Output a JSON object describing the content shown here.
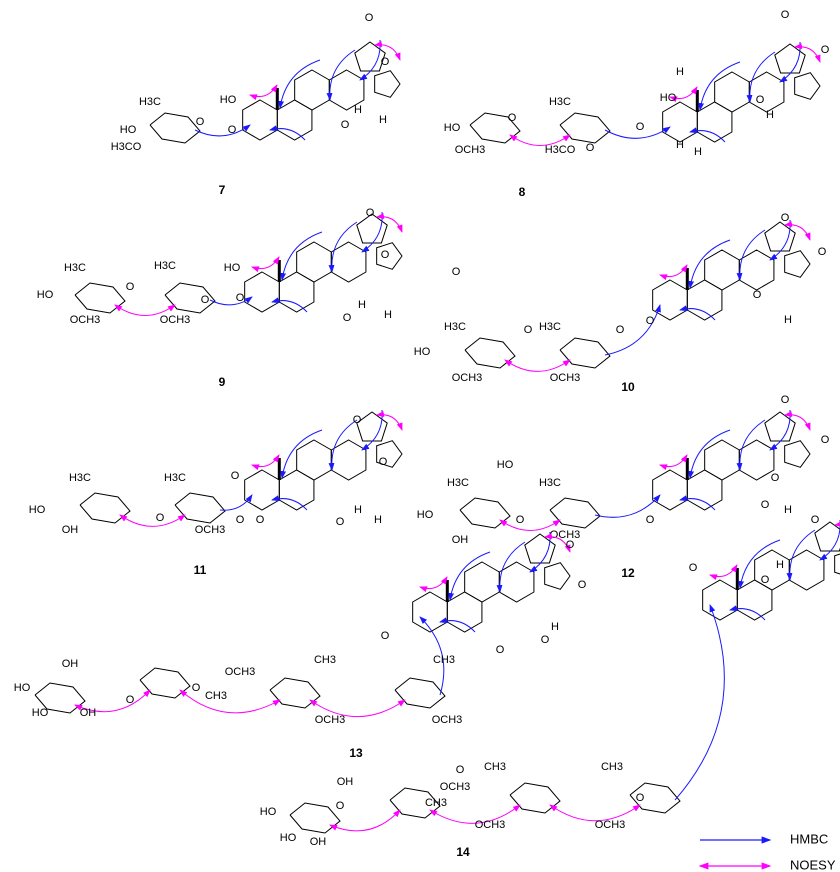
{
  "compounds": [
    {
      "number": "7",
      "atoms": [
        "HO",
        "H3C",
        "HO",
        "H3CO",
        "O",
        "O",
        "O",
        "O",
        "O",
        "H",
        "H"
      ]
    },
    {
      "number": "8",
      "atoms": [
        "HO",
        "H3C",
        "H3CO",
        "OCH3",
        "O",
        "O",
        "O",
        "HO",
        "H",
        "H",
        "H",
        "O",
        "O",
        "O",
        "H"
      ]
    },
    {
      "number": "9",
      "atoms": [
        "HO",
        "H3C",
        "HO",
        "OCH3",
        "H3C",
        "OCH3",
        "O",
        "O",
        "O",
        "O",
        "O",
        "O",
        "H",
        "H"
      ]
    },
    {
      "number": "10",
      "atoms": [
        "O",
        "H3C",
        "HO",
        "OCH3",
        "H3C",
        "OCH3",
        "O",
        "O",
        "O",
        "O",
        "O",
        "O",
        "H"
      ]
    },
    {
      "number": "11",
      "atoms": [
        "O",
        "H3C",
        "HO",
        "OH",
        "H3C",
        "OCH3",
        "O",
        "O",
        "O",
        "O",
        "O",
        "O",
        "H",
        "H"
      ]
    },
    {
      "number": "12",
      "atoms": [
        "HO",
        "H3C",
        "HO",
        "OH",
        "H3C",
        "OCH3",
        "O",
        "O",
        "O",
        "O",
        "O",
        "H"
      ]
    },
    {
      "number": "13",
      "atoms": [
        "OH",
        "HO",
        "HO",
        "OH",
        "O",
        "OCH3",
        "CH3",
        "O",
        "CH3",
        "OCH3",
        "CH3",
        "OCH3",
        "O",
        "O",
        "O",
        "O",
        "O",
        "H"
      ]
    },
    {
      "number": "14",
      "atoms": [
        "OH",
        "HO",
        "HO",
        "OH",
        "O",
        "OCH3",
        "CH3",
        "O",
        "CH3",
        "OCH3",
        "CH3",
        "OCH3",
        "O",
        "O",
        "O",
        "O",
        "O",
        "H"
      ]
    }
  ],
  "legend": {
    "hmbc": "HMBC",
    "noesy": "NOESY"
  }
}
